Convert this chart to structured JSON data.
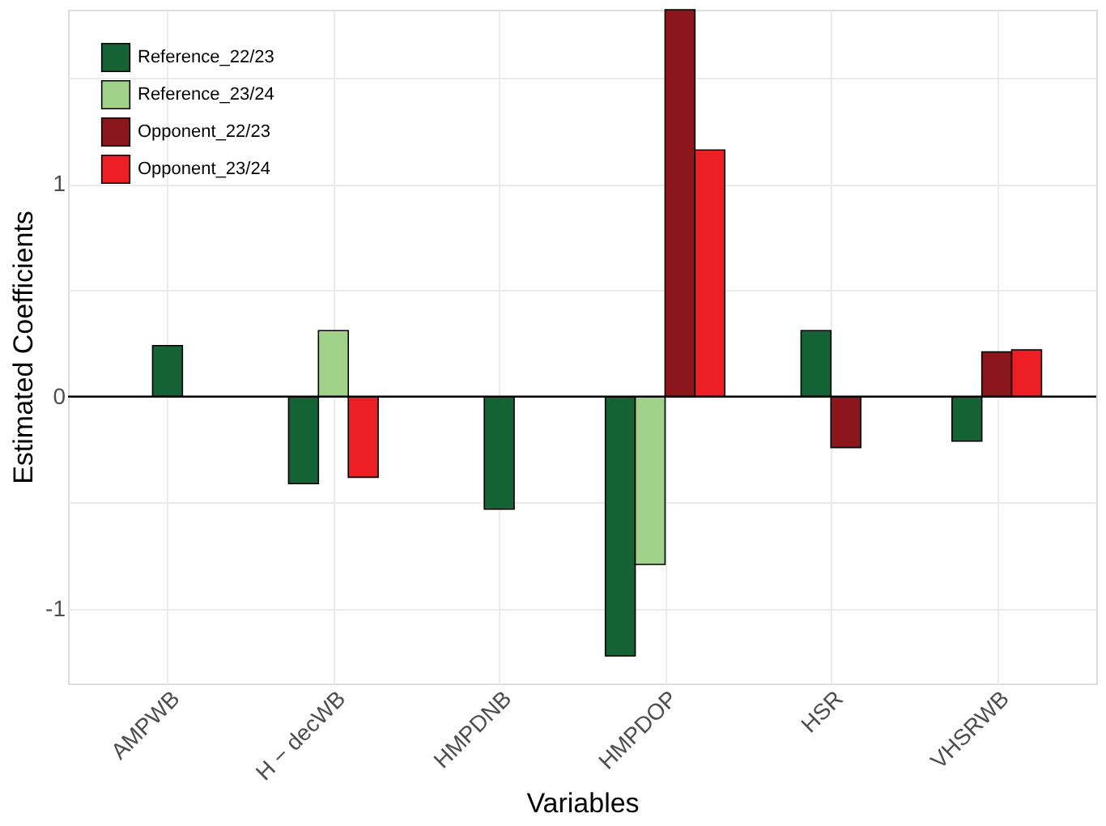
{
  "chart_data": {
    "type": "bar",
    "xlabel": "Variables",
    "ylabel": "Estimated Coefficients",
    "categories": [
      "AMPWB",
      "H − decWB",
      "HMPDNB",
      "HMPDOP",
      "HSR",
      "VHSRWB"
    ],
    "series": [
      {
        "name": "Reference_22/23",
        "color": "#156234",
        "values": [
          0.24,
          -0.41,
          -0.53,
          -1.22,
          0.31,
          -0.21
        ]
      },
      {
        "name": "Reference_23/24",
        "color": "#a0d28a",
        "values": [
          null,
          0.31,
          null,
          -0.79,
          null,
          null
        ]
      },
      {
        "name": "Opponent_22/23",
        "color": "#8b171c",
        "values": [
          null,
          null,
          null,
          1.82,
          -0.24,
          0.21
        ]
      },
      {
        "name": "Opponent_23/24",
        "color": "#ed1f24",
        "values": [
          null,
          -0.38,
          null,
          1.16,
          null,
          0.22
        ]
      }
    ],
    "ylim": [
      -1.35,
      1.82
    ],
    "yticks": [
      -1,
      {
        "value": -0.5,
        "label": null
      },
      0,
      {
        "value": 0.5,
        "label": null
      },
      1,
      {
        "value": 1.5,
        "label": null
      }
    ],
    "ref_lines": [
      {
        "axis": "y",
        "value": 0,
        "color": "#000000"
      }
    ],
    "grid": true,
    "legend": "top left"
  }
}
